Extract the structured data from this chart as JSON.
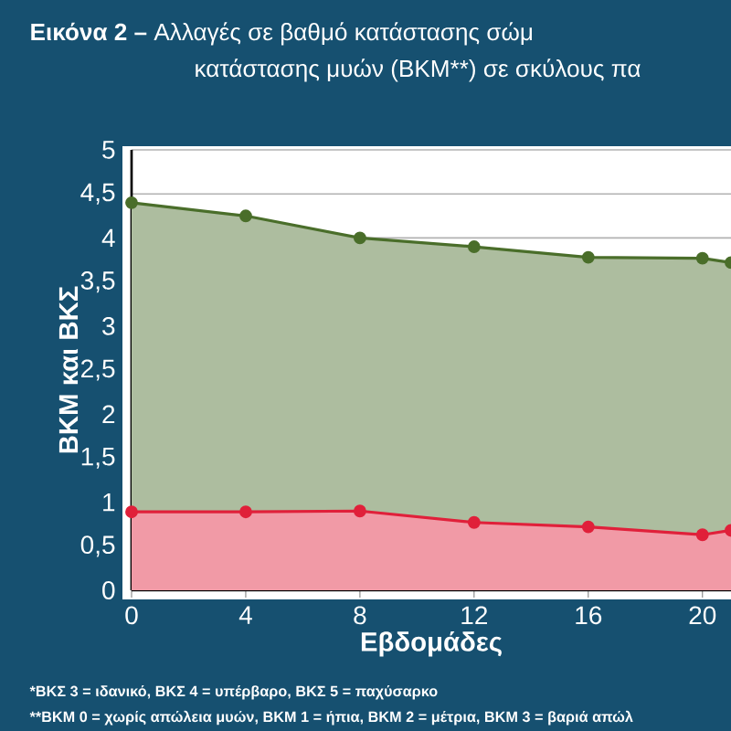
{
  "chart_data": {
    "type": "area",
    "title": "**Εικόνα 2 –** Αλλαγές σε βαθμό κατάστασης σώμ",
    "subtitle": "κατάστασης μυών (ΒΚΜ**) σε σκύλους πα",
    "xlabel": "Εβδομάδες",
    "ylabel": "ΒΚΜ και ΒΚΣ",
    "x": [
      0,
      4,
      8,
      12,
      16,
      20,
      21
    ],
    "series": [
      {
        "color": "#4a6e2a",
        "values": [
          4.4,
          4.25,
          4.0,
          3.9,
          3.78,
          3.77,
          3.72
        ]
      },
      {
        "color": "#e0203a",
        "values": [
          0.89,
          0.89,
          0.9,
          0.77,
          0.72,
          0.63,
          0.68
        ]
      }
    ],
    "xlim": [
      0,
      21
    ],
    "xticks": [
      0,
      4,
      8,
      12,
      16,
      20
    ],
    "ylim": [
      0,
      5
    ],
    "yticks": [
      0,
      {
        "value": 0.5,
        "label": "0,5"
      },
      1,
      {
        "value": 1.5,
        "label": "1,5"
      },
      2,
      {
        "value": 2.5,
        "label": "2,5"
      },
      3,
      {
        "value": 3.5,
        "label": "3,5"
      },
      4,
      {
        "value": 4.5,
        "label": "4,5"
      },
      5
    ],
    "grid": "y",
    "marker": "circle",
    "annotations": [
      "*ΒΚΣ 3 = ιδανικό, ΒΚΣ 4 = υπέρβαρο, ΒΚΣ 5 = παχύσαρκο",
      "**ΒΚΜ 0 = χωρίς απώλεια μυών, ΒΚΜ 1 = ήπια, ΒΚΜ 2 = μέτρια, ΒΚΜ 3 = βαριά απώλ"
    ]
  }
}
